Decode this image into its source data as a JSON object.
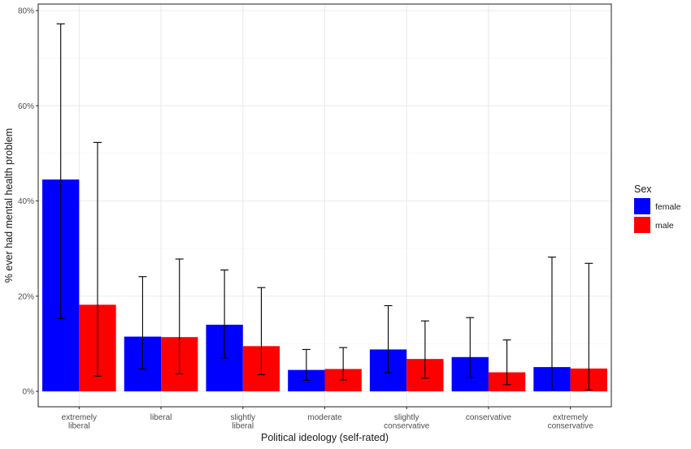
{
  "chart_data": {
    "type": "bar",
    "title": "",
    "xlabel": "Political ideology (self-rated)",
    "ylabel": "% ever had mental health problem",
    "ylim": [
      0,
      80
    ],
    "yticks": [
      0,
      20,
      40,
      60,
      80
    ],
    "ytick_labels": [
      "0%",
      "20%",
      "40%",
      "60%",
      "80%"
    ],
    "grid": true,
    "legend_position": "right",
    "legend_title": "Sex",
    "categories": [
      [
        "extremely",
        "liberal"
      ],
      [
        "liberal"
      ],
      [
        "slightly",
        "liberal"
      ],
      [
        "moderate"
      ],
      [
        "slightly",
        "conservative"
      ],
      [
        "conservative"
      ],
      [
        "extremely",
        "conservative"
      ]
    ],
    "series": [
      {
        "name": "female",
        "color": "#0000ff",
        "values": [
          44.5,
          11.5,
          14.0,
          4.5,
          8.8,
          7.2,
          5.1
        ],
        "err_low": [
          15.3,
          4.7,
          7.0,
          2.3,
          3.9,
          2.9,
          0.4
        ],
        "err_high": [
          77.2,
          24.1,
          25.5,
          8.8,
          18.0,
          15.5,
          28.2
        ]
      },
      {
        "name": "male",
        "color": "#ff0000",
        "values": [
          18.2,
          11.4,
          9.5,
          4.7,
          6.8,
          4.0,
          4.8
        ],
        "err_low": [
          3.2,
          3.7,
          3.5,
          2.4,
          2.8,
          1.4,
          0.3
        ],
        "err_high": [
          52.3,
          27.8,
          21.8,
          9.2,
          14.8,
          10.8,
          26.9
        ]
      }
    ]
  }
}
